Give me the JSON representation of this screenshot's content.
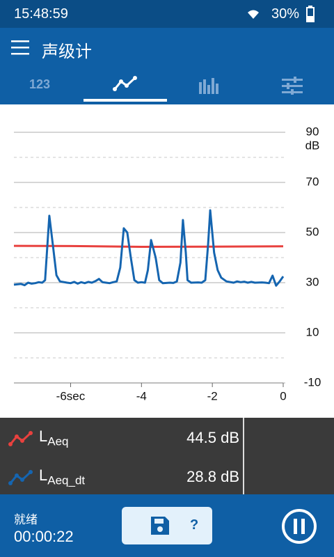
{
  "status_bar": {
    "time": "15:48:59",
    "battery": "30%"
  },
  "app_bar": {
    "title": "声级计",
    "tabs": [
      "123"
    ]
  },
  "chart_data": {
    "type": "line",
    "xlim": [
      -7.6,
      0
    ],
    "xticks": [
      {
        "value": -6,
        "label": "-6sec"
      },
      -4,
      -2,
      0
    ],
    "ylim": [
      -10,
      90
    ],
    "yticks": [
      -10,
      10,
      30,
      50,
      70,
      90
    ],
    "minor_yticks": [
      0,
      20,
      40,
      60,
      80
    ],
    "y_unit": "dB",
    "grid": true,
    "series": [
      {
        "name": "LAeq",
        "color": "#e8413e",
        "readout": "44.5 dB",
        "x": [
          -7.6,
          -6,
          -4,
          -2,
          0
        ],
        "values": [
          44.7,
          44.6,
          44.3,
          44.4,
          44.5
        ]
      },
      {
        "name": "LAeq_dt",
        "color": "#1565b0",
        "readout": "28.8 dB",
        "x": [
          -7.6,
          -7.4,
          -7.3,
          -7.2,
          -7.1,
          -7.0,
          -6.9,
          -6.8,
          -6.72,
          -6.6,
          -6.5,
          -6.4,
          -6.3,
          -6.1,
          -6.0,
          -5.9,
          -5.8,
          -5.7,
          -5.6,
          -5.5,
          -5.4,
          -5.3,
          -5.2,
          -5.1,
          -5.0,
          -4.9,
          -4.8,
          -4.7,
          -4.6,
          -4.5,
          -4.4,
          -4.3,
          -4.2,
          -4.1,
          -4.0,
          -3.9,
          -3.82,
          -3.73,
          -3.6,
          -3.5,
          -3.4,
          -3.2,
          -3.1,
          -3.0,
          -2.9,
          -2.83,
          -2.75,
          -2.7,
          -2.6,
          -2.4,
          -2.3,
          -2.2,
          -2.12,
          -2.06,
          -1.95,
          -1.85,
          -1.75,
          -1.6,
          -1.4,
          -1.3,
          -1.2,
          -1.1,
          -1.0,
          -0.9,
          -0.8,
          -0.6,
          -0.5,
          -0.4,
          -0.3,
          -0.2,
          -0.1,
          0
        ],
        "values": [
          29.2,
          29.5,
          29.0,
          30.0,
          29.6,
          29.8,
          30.2,
          30.0,
          31,
          56.7,
          45,
          33,
          30.5,
          30,
          29.8,
          30.3,
          29.6,
          30.2,
          29.8,
          30.3,
          30.0,
          30.6,
          31.5,
          30.2,
          30,
          29.8,
          30.2,
          30.5,
          36,
          51.7,
          50,
          40,
          31,
          30,
          30.2,
          30.0,
          35,
          47.0,
          40,
          31,
          29.8,
          30,
          29.9,
          30.5,
          38,
          55,
          42,
          31,
          30,
          30.1,
          30.0,
          31,
          45,
          58.9,
          42,
          35,
          32,
          30.5,
          30.0,
          30.5,
          30.2,
          30.4,
          30.0,
          30.3,
          30.0,
          30.1,
          30.0,
          29.8,
          32.8,
          28.8,
          30.5,
          32.5
        ]
      }
    ]
  },
  "bottom_bar": {
    "status": "就绪",
    "elapsed": "00:00:22",
    "help": "?"
  }
}
